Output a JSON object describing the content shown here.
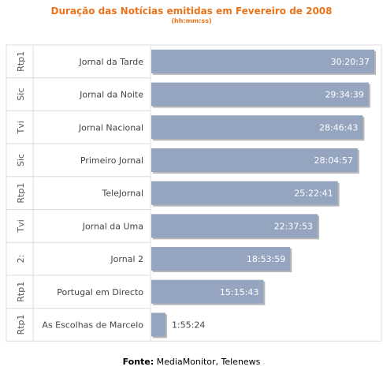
{
  "chart_data": {
    "type": "bar",
    "orientation": "horizontal",
    "title": "Duração das Notícias emitidas em Fevereiro de 2008",
    "subtitle": "(hh:mm:ss)",
    "rows": [
      {
        "channel": "Rtp1",
        "program": "Jornal da Tarde",
        "duration": "30:20:37",
        "seconds": 109237
      },
      {
        "channel": "Sic",
        "program": "Jornal da Noite",
        "duration": "29:34:39",
        "seconds": 106479
      },
      {
        "channel": "Tvi",
        "program": "Jornal Nacional",
        "duration": "28:46:43",
        "seconds": 103603
      },
      {
        "channel": "Sic",
        "program": "Primeiro Jornal",
        "duration": "28:04:57",
        "seconds": 101097
      },
      {
        "channel": "Rtp1",
        "program": "TeleJornal",
        "duration": "25:22:41",
        "seconds": 91361
      },
      {
        "channel": "Tvi",
        "program": "Jornal da Uma",
        "duration": "22:37:53",
        "seconds": 81473
      },
      {
        "channel": "2:",
        "program": "Jornal 2",
        "duration": "18:53:59",
        "seconds": 68039
      },
      {
        "channel": "Rtp1",
        "program": "Portugal em Directo",
        "duration": "15:15:43",
        "seconds": 54943
      },
      {
        "channel": "Rtp1",
        "program": "As Escolhas de Marcelo",
        "duration": "1:55:24",
        "seconds": 6924
      }
    ],
    "max_seconds": 109237,
    "bar_color": "#95a5bf",
    "title_color": "#e8731a"
  },
  "source": {
    "label": "Fonte:",
    "text": "MediaMonitor, Telenews"
  }
}
